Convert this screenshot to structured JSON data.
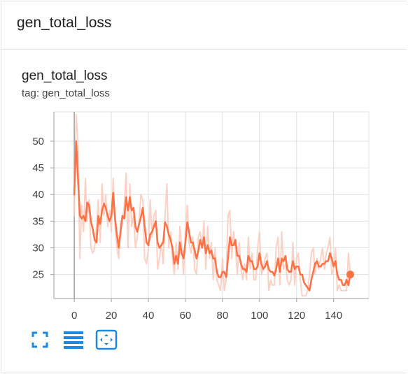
{
  "card": {
    "title": "gen_total_loss"
  },
  "chart_data": {
    "type": "line",
    "title": "gen_total_loss",
    "subtitle": "tag: gen_total_loss",
    "xlabel": "",
    "ylabel": "",
    "xlim": [
      -11,
      159
    ],
    "ylim": [
      20.5,
      55.5
    ],
    "xticks": [
      0,
      20,
      40,
      60,
      80,
      100,
      120,
      140
    ],
    "yticks": [
      25,
      30,
      35,
      40,
      45,
      50
    ],
    "grid": true,
    "colors": {
      "smoothed": "#ff7043",
      "raw": "#fbc9bb",
      "grid": "#e0e0e0",
      "axis": "#9e9e9e"
    },
    "series": [
      {
        "style": "smoothed",
        "x": [
          0,
          1,
          2,
          3,
          4,
          5,
          6,
          7,
          8,
          9,
          10,
          11,
          12,
          13,
          14,
          15,
          16,
          17,
          18,
          19,
          20,
          21,
          22,
          23,
          24,
          25,
          26,
          27,
          28,
          29,
          30,
          31,
          32,
          33,
          34,
          35,
          36,
          37,
          38,
          39,
          40,
          41,
          42,
          43,
          44,
          45,
          46,
          47,
          48,
          49,
          50,
          51,
          52,
          53,
          54,
          55,
          56,
          57,
          58,
          59,
          60,
          61,
          62,
          63,
          64,
          65,
          66,
          67,
          68,
          69,
          70,
          71,
          72,
          73,
          74,
          75,
          76,
          77,
          78,
          79,
          80,
          81,
          82,
          83,
          84,
          85,
          86,
          87,
          88,
          89,
          90,
          91,
          92,
          93,
          94,
          95,
          96,
          97,
          98,
          99,
          100,
          101,
          102,
          103,
          104,
          105,
          106,
          107,
          108,
          109,
          110,
          111,
          112,
          113,
          114,
          115,
          116,
          117,
          118,
          119,
          120,
          121,
          122,
          123,
          124,
          125,
          126,
          127,
          128,
          129,
          130,
          131,
          132,
          133,
          134,
          135,
          136,
          137,
          138,
          139,
          140,
          141,
          142,
          143,
          144,
          145,
          146,
          147,
          148,
          149
        ],
        "y": [
          40,
          50,
          43,
          36,
          35.5,
          36,
          35,
          38.5,
          38,
          35,
          33.5,
          31.5,
          31,
          36,
          34.5,
          37,
          38.3,
          37.5,
          36,
          35,
          36,
          40.3,
          35.5,
          32.5,
          30,
          33,
          36,
          35.5,
          39.5,
          37,
          39.5,
          37,
          37.5,
          34,
          33,
          34.5,
          35.8,
          37.5,
          34,
          31,
          30.5,
          32.5,
          33,
          34,
          35,
          31,
          30,
          30.5,
          31,
          34.8,
          34,
          32.5,
          31.5,
          30,
          27,
          28.5,
          27,
          31,
          29,
          28,
          31,
          34.8,
          33,
          31,
          31,
          29.5,
          28,
          29.5,
          31.5,
          30,
          32,
          29,
          30.5,
          29,
          29.5,
          28,
          28,
          25.5,
          24.5,
          24.5,
          25.5,
          25.5,
          24.5,
          28,
          32,
          30.5,
          30.5,
          31.5,
          28.5,
          28.5,
          27,
          26,
          26,
          25.5,
          28.5,
          27.5,
          27.5,
          26,
          26,
          26.5,
          29,
          27,
          26,
          26.5,
          27.5,
          26,
          25.5,
          25.5,
          24.8,
          26,
          28,
          25.5,
          28,
          27.5,
          28.5,
          26,
          25.5,
          25.5,
          27.5,
          26,
          26.5,
          26.5,
          25,
          25,
          23.5,
          23,
          22.5,
          22,
          24,
          25.5,
          27,
          27.5,
          26.5,
          26.5,
          27,
          27,
          27.5,
          27.5,
          29,
          28,
          26.5,
          27.5,
          25,
          24,
          24,
          23,
          23,
          24,
          23,
          25
        ]
      },
      {
        "style": "raw",
        "x": [
          0,
          1,
          2,
          3,
          4,
          5,
          6,
          7,
          8,
          9,
          10,
          11,
          12,
          13,
          14,
          15,
          16,
          17,
          18,
          19,
          20,
          21,
          22,
          23,
          24,
          25,
          26,
          27,
          28,
          29,
          30,
          31,
          32,
          33,
          34,
          35,
          36,
          37,
          38,
          39,
          40,
          41,
          42,
          43,
          44,
          45,
          46,
          47,
          48,
          49,
          50,
          51,
          52,
          53,
          54,
          55,
          56,
          57,
          58,
          59,
          60,
          61,
          62,
          63,
          64,
          65,
          66,
          67,
          68,
          69,
          70,
          71,
          72,
          73,
          74,
          75,
          76,
          77,
          78,
          79,
          80,
          81,
          82,
          83,
          84,
          85,
          86,
          87,
          88,
          89,
          90,
          91,
          92,
          93,
          94,
          95,
          96,
          97,
          98,
          99,
          100,
          101,
          102,
          103,
          104,
          105,
          106,
          107,
          108,
          109,
          110,
          111,
          112,
          113,
          114,
          115,
          116,
          117,
          118,
          119,
          120,
          121,
          122,
          123,
          124,
          125,
          126,
          127,
          128,
          129,
          130,
          131,
          132,
          133,
          134,
          135,
          136,
          137,
          138,
          139,
          140,
          141,
          142,
          143,
          144,
          145,
          146,
          147,
          148,
          149
        ],
        "y": [
          36,
          55,
          50,
          28,
          38,
          33,
          43,
          35,
          39,
          30,
          29,
          30,
          34,
          39,
          31,
          42,
          36,
          40,
          34,
          37,
          33,
          43,
          34,
          30,
          28,
          35,
          35,
          38,
          44,
          30,
          42,
          34,
          36,
          30,
          32,
          35,
          40,
          39,
          28,
          27,
          30,
          39,
          32,
          36,
          37,
          26,
          28,
          31,
          27,
          36,
          42,
          30,
          33,
          28,
          25,
          31,
          26,
          34,
          30,
          25,
          33,
          38,
          31,
          29,
          32,
          26,
          25,
          32,
          33,
          30,
          35,
          26,
          34,
          28,
          31,
          24,
          30,
          24,
          23,
          22,
          28,
          22,
          24,
          36,
          37,
          28,
          33,
          30,
          25,
          31,
          26,
          24,
          27,
          24,
          32,
          26,
          29,
          24,
          24,
          30,
          33,
          25,
          26,
          28,
          29,
          22,
          24,
          23,
          23,
          30,
          32,
          23,
          33,
          26,
          27,
          24,
          23,
          24,
          31,
          23,
          28,
          29,
          24,
          21,
          21,
          21,
          22,
          25,
          29,
          30,
          25,
          28,
          26,
          28,
          30,
          26,
          29,
          30,
          32,
          25,
          26,
          30,
          22,
          23,
          22,
          22,
          22,
          22,
          29,
          25
        ]
      }
    ],
    "last_point": {
      "x": 149,
      "y": 25
    }
  },
  "toolbar": {
    "fullscreen_icon": "fullscreen-icon",
    "lines_icon": "toggle-lines-icon",
    "fit_icon": "fit-domain-icon"
  }
}
